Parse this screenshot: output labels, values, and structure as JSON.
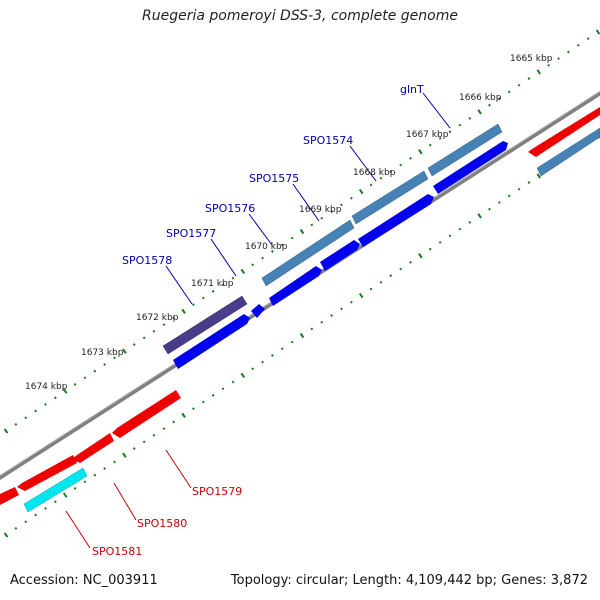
{
  "title": "Ruegeria pomeroyi DSS-3, complete genome",
  "footer": {
    "accession": "Accession: NC_003911",
    "stats": "Topology: circular; Length: 4,109,442 bp; Genes: 3,872"
  },
  "scale_labels": [
    "1665 kbp",
    "1666 kbp",
    "1667 kbp",
    "1668 kbp",
    "1669 kbp",
    "1670 kbp",
    "1671 kbp",
    "1672 kbp",
    "1673 kbp",
    "1674 kbp"
  ],
  "gene_labels_top": [
    "glnT",
    "SPO1574",
    "SPO1575",
    "SPO1576",
    "SPO1577",
    "SPO1578"
  ],
  "gene_labels_bottom": [
    "SPO1579",
    "SPO1580",
    "SPO1581"
  ],
  "colors": {
    "forward_cds": "#0000ee",
    "forward_feature": "#4682b4",
    "forward_feature_alt": "#483d8b",
    "reverse_cds": "#ee0000",
    "reverse_feature": "#00e5ee",
    "backbone": "#808080",
    "tick": "#1a7a1a",
    "label_forward": "#0000aa",
    "label_reverse": "#cc0000"
  }
}
